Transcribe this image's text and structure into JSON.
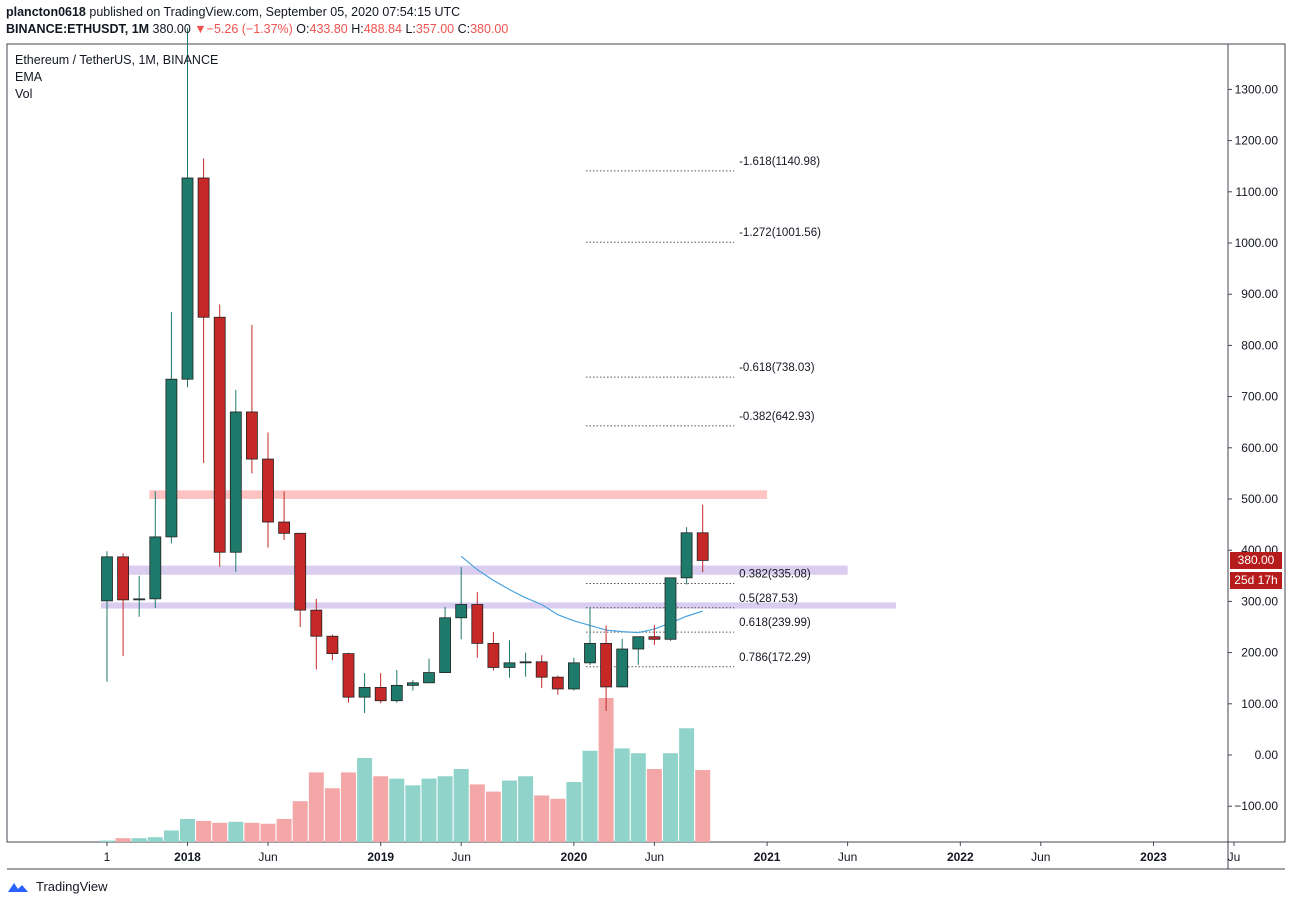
{
  "header": {
    "publisher": "plancton0618",
    "published_text": "published on TradingView.com, September 05, 2020 07:54:15 UTC",
    "symbol": "BINANCE:ETHUSDT, 1M",
    "last": "380.00",
    "change_arrow": "▼",
    "change": "−5.26 (−1.37%)",
    "o_label": "O:",
    "o_value": "433.80",
    "h_label": "H:",
    "h_value": "488.84",
    "l_label": "L:",
    "l_value": "357.00",
    "c_label": "C:",
    "c_value": "380.00"
  },
  "legend": {
    "title": "Ethereum / TetherUS, 1M, BINANCE",
    "ema": "EMA",
    "vol": "Vol"
  },
  "price_tag": {
    "price": "380.00",
    "countdown": "25d 17h"
  },
  "footer": {
    "brand": "TradingView",
    "brand_icon": "tradingview-logo-icon"
  },
  "colors": {
    "up": "#1e7b6b",
    "down": "#c62828",
    "vol_up": "#8fd3ca",
    "vol_down": "#f4a7a7",
    "resistance_zone": "#ffbcbc",
    "support_zone": "#d6c8ee",
    "ema": "#4aa3df",
    "fib_line": "#555555"
  },
  "chart_data": {
    "type": "candlestick",
    "timeframe": "1M",
    "ylim": [
      -165,
      1400
    ],
    "y_ticks": [
      "1300.00",
      "1200.00",
      "1100.00",
      "1000.00",
      "900.00",
      "800.00",
      "700.00",
      "600.00",
      "500.00",
      "400.00",
      "300.00",
      "200.00",
      "100.00",
      "0.00",
      "−100.00"
    ],
    "y_tick_values": [
      1300,
      1200,
      1100,
      1000,
      900,
      800,
      700,
      600,
      500,
      400,
      300,
      200,
      100,
      0,
      -100
    ],
    "x_ticks": [
      {
        "label": "1",
        "month": "2017-08"
      },
      {
        "label": "2018",
        "month": "2018-01"
      },
      {
        "label": "Jun",
        "month": "2018-06"
      },
      {
        "label": "2019",
        "month": "2019-01"
      },
      {
        "label": "Jun",
        "month": "2019-06"
      },
      {
        "label": "2020",
        "month": "2020-01"
      },
      {
        "label": "Jun",
        "month": "2020-06"
      },
      {
        "label": "2021",
        "month": "2021-01"
      },
      {
        "label": "Jun",
        "month": "2021-06"
      },
      {
        "label": "2022",
        "month": "2022-01"
      },
      {
        "label": "Jun",
        "month": "2022-06"
      },
      {
        "label": "2023",
        "month": "2023-01"
      },
      {
        "label": "Ju",
        "month": "2023-06"
      }
    ],
    "candles": [
      {
        "month": "2017-08",
        "o": 301,
        "h": 398,
        "l": 143,
        "c": 387
      },
      {
        "month": "2017-09",
        "o": 387,
        "h": 394,
        "l": 193,
        "c": 303
      },
      {
        "month": "2017-10",
        "o": 303,
        "h": 350,
        "l": 270,
        "c": 305
      },
      {
        "month": "2017-11",
        "o": 305,
        "h": 515,
        "l": 287,
        "c": 426
      },
      {
        "month": "2017-12",
        "o": 426,
        "h": 865,
        "l": 413,
        "c": 734
      },
      {
        "month": "2018-01",
        "o": 734,
        "h": 1420,
        "l": 718,
        "c": 1127
      },
      {
        "month": "2018-02",
        "o": 1127,
        "h": 1165,
        "l": 570,
        "c": 855
      },
      {
        "month": "2018-03",
        "o": 855,
        "h": 880,
        "l": 368,
        "c": 396
      },
      {
        "month": "2018-04",
        "o": 396,
        "h": 713,
        "l": 358,
        "c": 670
      },
      {
        "month": "2018-05",
        "o": 670,
        "h": 840,
        "l": 550,
        "c": 578
      },
      {
        "month": "2018-06",
        "o": 578,
        "h": 630,
        "l": 405,
        "c": 455
      },
      {
        "month": "2018-07",
        "o": 455,
        "h": 515,
        "l": 420,
        "c": 433
      },
      {
        "month": "2018-08",
        "o": 433,
        "h": 433,
        "l": 250,
        "c": 283
      },
      {
        "month": "2018-09",
        "o": 283,
        "h": 305,
        "l": 167,
        "c": 232
      },
      {
        "month": "2018-10",
        "o": 232,
        "h": 235,
        "l": 185,
        "c": 198
      },
      {
        "month": "2018-11",
        "o": 198,
        "h": 200,
        "l": 102,
        "c": 113
      },
      {
        "month": "2018-12",
        "o": 113,
        "h": 160,
        "l": 82,
        "c": 132
      },
      {
        "month": "2019-01",
        "o": 132,
        "h": 160,
        "l": 101,
        "c": 106
      },
      {
        "month": "2019-02",
        "o": 106,
        "h": 166,
        "l": 102,
        "c": 136
      },
      {
        "month": "2019-03",
        "o": 136,
        "h": 146,
        "l": 126,
        "c": 141
      },
      {
        "month": "2019-04",
        "o": 141,
        "h": 188,
        "l": 141,
        "c": 161
      },
      {
        "month": "2019-05",
        "o": 161,
        "h": 289,
        "l": 161,
        "c": 268
      },
      {
        "month": "2019-06",
        "o": 268,
        "h": 367,
        "l": 226,
        "c": 294
      },
      {
        "month": "2019-07",
        "o": 294,
        "h": 318,
        "l": 190,
        "c": 218
      },
      {
        "month": "2019-08",
        "o": 218,
        "h": 240,
        "l": 165,
        "c": 171
      },
      {
        "month": "2019-09",
        "o": 171,
        "h": 224,
        "l": 151,
        "c": 180
      },
      {
        "month": "2019-10",
        "o": 180,
        "h": 200,
        "l": 153,
        "c": 182
      },
      {
        "month": "2019-11",
        "o": 182,
        "h": 195,
        "l": 131,
        "c": 152
      },
      {
        "month": "2019-12",
        "o": 152,
        "h": 155,
        "l": 118,
        "c": 129
      },
      {
        "month": "2020-01",
        "o": 129,
        "h": 190,
        "l": 126,
        "c": 180
      },
      {
        "month": "2020-02",
        "o": 180,
        "h": 288,
        "l": 176,
        "c": 218
      },
      {
        "month": "2020-03",
        "o": 218,
        "h": 253,
        "l": 86,
        "c": 133
      },
      {
        "month": "2020-04",
        "o": 133,
        "h": 227,
        "l": 132,
        "c": 207
      },
      {
        "month": "2020-05",
        "o": 207,
        "h": 227,
        "l": 176,
        "c": 231
      },
      {
        "month": "2020-06",
        "o": 231,
        "h": 254,
        "l": 215,
        "c": 226
      },
      {
        "month": "2020-07",
        "o": 226,
        "h": 346,
        "l": 223,
        "c": 346
      },
      {
        "month": "2020-08",
        "o": 346,
        "h": 445,
        "l": 333,
        "c": 434
      },
      {
        "month": "2020-09",
        "o": 434,
        "h": 489,
        "l": 357,
        "c": 380
      }
    ],
    "volume_scaled": [
      3,
      8,
      8,
      10,
      24,
      48,
      44,
      40,
      42,
      40,
      38,
      48,
      85,
      145,
      112,
      145,
      175,
      137,
      132,
      118,
      132,
      137,
      152,
      120,
      105,
      128,
      137,
      97,
      90,
      125,
      190,
      300,
      195,
      185,
      152,
      185,
      237,
      150
    ],
    "ema": [
      {
        "month": "2019-06",
        "v": 388
      },
      {
        "month": "2019-07",
        "v": 362
      },
      {
        "month": "2019-08",
        "v": 341
      },
      {
        "month": "2019-09",
        "v": 323
      },
      {
        "month": "2019-10",
        "v": 307
      },
      {
        "month": "2019-11",
        "v": 294
      },
      {
        "month": "2019-12",
        "v": 274
      },
      {
        "month": "2020-01",
        "v": 262
      },
      {
        "month": "2020-02",
        "v": 253
      },
      {
        "month": "2020-03",
        "v": 244
      },
      {
        "month": "2020-04",
        "v": 241
      },
      {
        "month": "2020-05",
        "v": 239
      },
      {
        "month": "2020-06",
        "v": 246
      },
      {
        "month": "2020-07",
        "v": 258
      },
      {
        "month": "2020-08",
        "v": 271
      },
      {
        "month": "2020-09",
        "v": 281
      }
    ],
    "zones": [
      {
        "name": "resistance-zone",
        "from": "2017-11",
        "to": "2021-01",
        "low": 500,
        "high": 517,
        "color": "#ffbcbc"
      },
      {
        "name": "support-zone-upper",
        "from": "2017-09",
        "to": "2021-06",
        "low": 352,
        "high": 370,
        "color": "#d6c8ee"
      },
      {
        "name": "support-zone-lower",
        "from": "2017-08",
        "to": "2021-09",
        "low": 286,
        "high": 298,
        "color": "#d6c8ee"
      }
    ],
    "fib_levels": [
      {
        "label": "-1.618(1140.98)",
        "value": 1140.98
      },
      {
        "label": "-1.272(1001.56)",
        "value": 1001.56
      },
      {
        "label": "-0.618(738.03)",
        "value": 738.03
      },
      {
        "label": "-0.382(642.93)",
        "value": 642.93
      },
      {
        "label": "0.382(335.08)",
        "value": 335.08
      },
      {
        "label": "0.5(287.53)",
        "value": 287.53
      },
      {
        "label": "0.618(239.99)",
        "value": 239.99
      },
      {
        "label": "0.786(172.29)",
        "value": 172.29
      }
    ],
    "fib_span": {
      "from": "2020-02",
      "to": "2021-01"
    }
  }
}
